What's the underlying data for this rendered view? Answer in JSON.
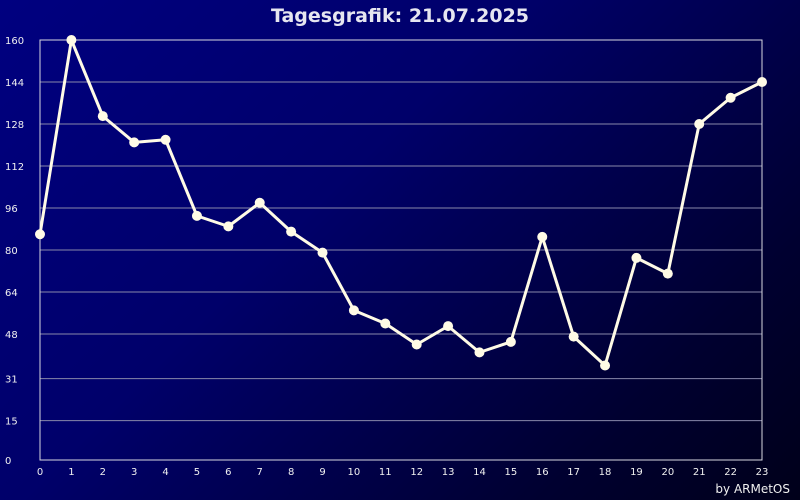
{
  "colors": {
    "line": "#fffbe6",
    "grid": "#8888aa",
    "axis": "#d8d8e0"
  },
  "credit": "by ARMetOS",
  "chart_data": {
    "type": "line",
    "title": "Tagesgrafik: 21.07.2025",
    "xlabel": "",
    "ylabel": "",
    "x": [
      0,
      1,
      2,
      3,
      4,
      5,
      6,
      7,
      8,
      9,
      10,
      11,
      12,
      13,
      14,
      15,
      16,
      17,
      18,
      19,
      20,
      21,
      22,
      23
    ],
    "series": [
      {
        "values": [
          86,
          160,
          131,
          121,
          122,
          93,
          89,
          98,
          87,
          79,
          57,
          52,
          44,
          51,
          41,
          45,
          85,
          47,
          36,
          77,
          71,
          128,
          138,
          144
        ]
      }
    ],
    "xlim": [
      0,
      23
    ],
    "ylim": [
      0,
      160
    ],
    "yticks": [
      0,
      15,
      31,
      48,
      64,
      80,
      96,
      112,
      128,
      144,
      160
    ],
    "xticks": [
      0,
      1,
      2,
      3,
      4,
      5,
      6,
      7,
      8,
      9,
      10,
      11,
      12,
      13,
      14,
      15,
      16,
      17,
      18,
      19,
      20,
      21,
      22,
      23
    ],
    "grid": true,
    "legend": "none"
  }
}
